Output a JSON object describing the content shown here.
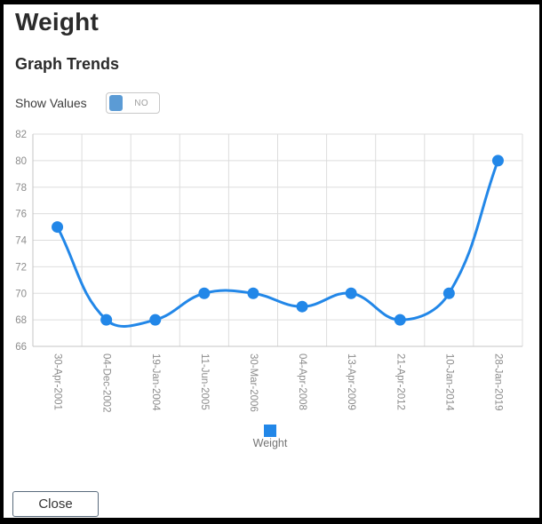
{
  "window": {
    "title": "Weight",
    "subtitle": "Graph Trends"
  },
  "controls": {
    "show_values_label": "Show Values",
    "show_values_state": "NO"
  },
  "footer": {
    "close_label": "Close"
  },
  "colors": {
    "line": "#2287e8",
    "point": "#2287e8",
    "legend_swatch": "#2287e8",
    "toggle_handle": "#5b9bd5",
    "grid": "#dddddd",
    "axis": "#c6c6c6",
    "tick_text": "#8c8c8c",
    "legend_text": "#757575"
  },
  "chart_data": {
    "type": "line",
    "title": "",
    "xlabel": "",
    "ylabel": "",
    "categories": [
      "30-Apr-2001",
      "04-Dec-2002",
      "19-Jan-2004",
      "11-Jun-2005",
      "30-Mar-2006",
      "04-Apr-2008",
      "13-Apr-2009",
      "21-Apr-2012",
      "10-Jan-2014",
      "28-Jan-2019"
    ],
    "series": [
      {
        "name": "Weight",
        "values": [
          75,
          68,
          68,
          70,
          70,
          69,
          70,
          68,
          70,
          80
        ]
      }
    ],
    "ylim": [
      66,
      82
    ],
    "yticks": [
      66,
      68,
      70,
      72,
      74,
      76,
      78,
      80,
      82
    ],
    "grid": true,
    "smooth": true,
    "line_tension": 0.4,
    "point_radius": 6.5,
    "legend_position": "bottom",
    "x_label_rotation": 90
  }
}
